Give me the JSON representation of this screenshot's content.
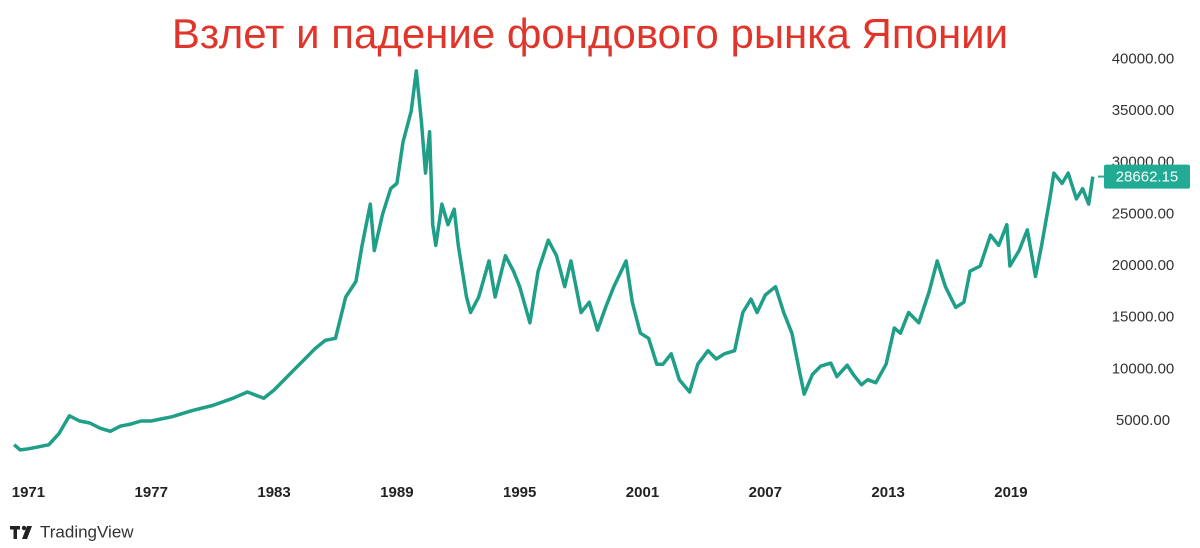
{
  "chart_data": {
    "type": "line",
    "title": "Взлет и падение фондового рынка Японии",
    "watermark": "TradingView",
    "color": "#1f9e88",
    "label_color": "#22ab94",
    "x": [
      1970.3,
      1970.6,
      1971.0,
      1971.5,
      1972.0,
      1972.5,
      1973.0,
      1973.5,
      1974.0,
      1974.5,
      1975.0,
      1975.5,
      1976.0,
      1976.5,
      1977.0,
      1977.5,
      1978.0,
      1979.0,
      1980.0,
      1981.0,
      1981.7,
      1982.5,
      1983.0,
      1984.0,
      1984.5,
      1985.0,
      1985.5,
      1986.0,
      1986.5,
      1987.0,
      1987.3,
      1987.7,
      1987.9,
      1988.3,
      1988.7,
      1989.0,
      1989.3,
      1989.7,
      1989.95,
      1990.2,
      1990.4,
      1990.6,
      1990.75,
      1990.9,
      1991.2,
      1991.5,
      1991.8,
      1992.0,
      1992.4,
      1992.6,
      1993.0,
      1993.5,
      1993.8,
      1994.3,
      1994.7,
      1995.0,
      1995.5,
      1995.9,
      1996.4,
      1996.8,
      1997.2,
      1997.5,
      1998.0,
      1998.4,
      1998.8,
      1999.2,
      1999.6,
      2000.2,
      2000.5,
      2000.9,
      2001.3,
      2001.7,
      2002.0,
      2002.4,
      2002.8,
      2003.3,
      2003.7,
      2004.2,
      2004.6,
      2005.0,
      2005.5,
      2005.9,
      2006.3,
      2006.6,
      2007.0,
      2007.5,
      2007.9,
      2008.3,
      2008.7,
      2008.9,
      2009.3,
      2009.7,
      2010.2,
      2010.5,
      2011.0,
      2011.3,
      2011.7,
      2012.0,
      2012.4,
      2012.9,
      2013.3,
      2013.6,
      2014.0,
      2014.5,
      2015.0,
      2015.4,
      2015.8,
      2016.3,
      2016.7,
      2017.0,
      2017.5,
      2018.0,
      2018.4,
      2018.8,
      2018.95,
      2019.4,
      2019.8,
      2020.2,
      2020.5,
      2020.9,
      2021.1,
      2021.5,
      2021.8,
      2022.2,
      2022.5,
      2022.8,
      2023.0
    ],
    "values": [
      2700,
      2200,
      2300,
      2500,
      2700,
      3800,
      5500,
      5000,
      4800,
      4300,
      4000,
      4500,
      4700,
      5000,
      5000,
      5200,
      5400,
      6000,
      6500,
      7200,
      7800,
      7200,
      8000,
      10000,
      11000,
      12000,
      12800,
      13000,
      17000,
      18500,
      22000,
      26000,
      21500,
      25000,
      27500,
      28000,
      32000,
      35000,
      38900,
      34000,
      29000,
      33000,
      24000,
      22000,
      26000,
      24000,
      25500,
      22000,
      17000,
      15500,
      17000,
      20500,
      17000,
      21000,
      19500,
      18000,
      14500,
      19500,
      22500,
      21000,
      18000,
      20500,
      15500,
      16500,
      13800,
      16000,
      18000,
      20500,
      16500,
      13500,
      13000,
      10500,
      10500,
      11500,
      9000,
      7800,
      10500,
      11800,
      11000,
      11500,
      11800,
      15500,
      16800,
      15500,
      17200,
      18000,
      15500,
      13500,
      9500,
      7600,
      9500,
      10300,
      10600,
      9300,
      10400,
      9500,
      8500,
      9000,
      8700,
      10500,
      14000,
      13500,
      15500,
      14500,
      17500,
      20500,
      18000,
      16000,
      16500,
      19500,
      20000,
      23000,
      22000,
      24000,
      20000,
      21500,
      23500,
      19000,
      22000,
      26500,
      29000,
      28000,
      29000,
      26500,
      27500,
      26000,
      28662.15
    ],
    "xlim": [
      1970.1,
      2023.4
    ],
    "xticks": [
      1971,
      1977,
      1983,
      1989,
      1995,
      2001,
      2007,
      2013,
      2019
    ],
    "ylim": [
      0,
      41500
    ],
    "yticks": [
      {
        "value": 5000,
        "label": "5000.00"
      },
      {
        "value": 10000,
        "label": "10000.00"
      },
      {
        "value": 15000,
        "label": "15000.00"
      },
      {
        "value": 20000,
        "label": "20000.00"
      },
      {
        "value": 25000,
        "label": "25000.00"
      },
      {
        "value": 30000,
        "label": "30000.00"
      },
      {
        "value": 35000,
        "label": "35000.00"
      },
      {
        "value": 40000,
        "label": "40000.00"
      }
    ],
    "grid": false
  }
}
